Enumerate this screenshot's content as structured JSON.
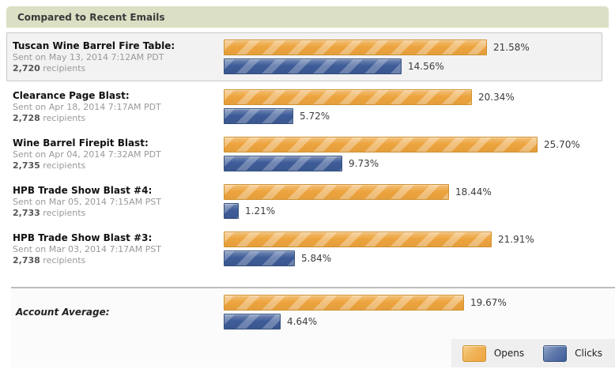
{
  "header": {
    "title": "Compared to Recent Emails"
  },
  "labels": {
    "recipients_suffix": " recipients"
  },
  "colors": {
    "opens": "#EDA43E",
    "clicks": "#3E5C98"
  },
  "chart_data": {
    "type": "bar",
    "orientation": "horizontal",
    "series": [
      "Opens",
      "Clicks"
    ],
    "value_unit": "%",
    "xlim": [
      0,
      26
    ],
    "rows": [
      {
        "title": "Tuscan Wine Barrel Fire Table:",
        "sent": "Sent on May 13, 2014 7:12AM PDT",
        "recipients": "2,720",
        "opens": 21.58,
        "clicks": 14.56,
        "highlighted": true
      },
      {
        "title": "Clearance Page Blast:",
        "sent": "Sent on Apr 18, 2014 7:17AM PDT",
        "recipients": "2,728",
        "opens": 20.34,
        "clicks": 5.72,
        "highlighted": false
      },
      {
        "title": "Wine Barrel Firepit Blast:",
        "sent": "Sent on Apr 04, 2014 7:32AM PDT",
        "recipients": "2,735",
        "opens": 25.7,
        "clicks": 9.73,
        "highlighted": false
      },
      {
        "title": "HPB Trade Show Blast #4:",
        "sent": "Sent on Mar 05, 2014 7:15AM PST",
        "recipients": "2,733",
        "opens": 18.44,
        "clicks": 1.21,
        "highlighted": false
      },
      {
        "title": "HPB Trade Show Blast #3:",
        "sent": "Sent on Mar 03, 2014 7:17AM PST",
        "recipients": "2,738",
        "opens": 21.91,
        "clicks": 5.84,
        "highlighted": false
      }
    ],
    "account_average": {
      "title": "Account Average:",
      "opens": 19.67,
      "clicks": 4.64
    }
  },
  "legend": {
    "items": [
      {
        "label": "Opens",
        "series": "opens"
      },
      {
        "label": "Clicks",
        "series": "clicks"
      }
    ]
  }
}
